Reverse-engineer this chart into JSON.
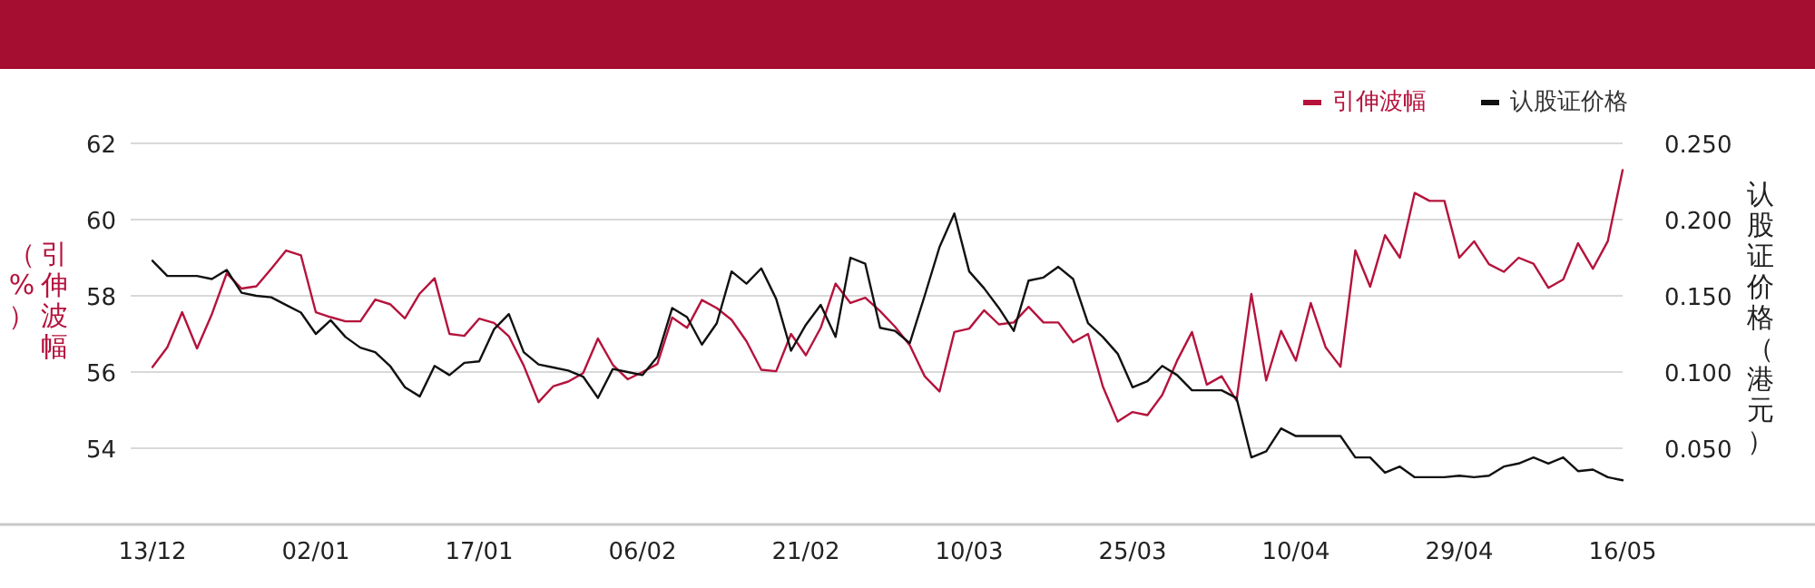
{
  "chart_data": {
    "type": "line",
    "categories": [
      "13/12",
      null,
      null,
      null,
      null,
      null,
      null,
      null,
      null,
      null,
      null,
      "02/01",
      null,
      null,
      null,
      null,
      null,
      null,
      null,
      null,
      null,
      null,
      "17/01",
      null,
      null,
      null,
      null,
      null,
      null,
      null,
      null,
      null,
      null,
      "06/02",
      null,
      null,
      null,
      null,
      null,
      null,
      null,
      null,
      null,
      null,
      "21/02",
      null,
      null,
      null,
      null,
      null,
      null,
      null,
      null,
      null,
      null,
      "10/03",
      null,
      null,
      null,
      null,
      null,
      null,
      null,
      null,
      null,
      null,
      "25/03",
      null,
      null,
      null,
      null,
      null,
      null,
      null,
      null,
      null,
      null,
      "10/04",
      null,
      null,
      null,
      null,
      null,
      null,
      null,
      null,
      null,
      null,
      "29/04",
      null,
      null,
      null,
      null,
      null,
      null,
      null,
      null,
      null,
      null,
      "16/05"
    ],
    "series": [
      {
        "name": "引伸波幅",
        "color": "#b5133c",
        "values": [
          56.13,
          56.65,
          57.57,
          56.62,
          57.52,
          58.59,
          58.19,
          58.25,
          58.71,
          59.19,
          59.06,
          57.57,
          57.44,
          57.33,
          57.33,
          57.9,
          57.78,
          57.41,
          58.06,
          58.46,
          57.0,
          56.95,
          57.4,
          57.29,
          56.94,
          56.17,
          55.21,
          55.63,
          55.75,
          55.97,
          56.88,
          56.19,
          55.81,
          56.0,
          56.21,
          57.43,
          57.16,
          57.89,
          57.68,
          57.37,
          56.81,
          56.06,
          56.02,
          57.0,
          56.44,
          57.16,
          58.32,
          57.81,
          57.95,
          57.6,
          57.19,
          56.7,
          55.89,
          55.49,
          57.05,
          57.14,
          57.62,
          57.25,
          57.3,
          57.71,
          57.3,
          57.3,
          56.78,
          57.0,
          55.62,
          54.7,
          54.95,
          54.87,
          55.4,
          56.3,
          57.05,
          55.67,
          55.89,
          55.25,
          58.05,
          55.78,
          57.08,
          56.3,
          57.81,
          56.65,
          56.14,
          59.19,
          58.24,
          59.59,
          59.0,
          60.7,
          60.49,
          60.49,
          59.0,
          59.43,
          58.83,
          58.63,
          59.0,
          58.84,
          58.21,
          58.43,
          59.38,
          58.71,
          59.43,
          61.3
        ]
      },
      {
        "name": "认股证价格",
        "color": "#111111",
        "axis": "y2",
        "values": [
          0.173,
          0.163,
          0.163,
          0.163,
          0.161,
          0.167,
          0.152,
          0.15,
          0.149,
          0.144,
          0.139,
          0.125,
          0.134,
          0.123,
          0.116,
          0.113,
          0.104,
          0.09,
          0.084,
          0.104,
          0.098,
          0.106,
          0.107,
          0.128,
          0.138,
          0.113,
          0.105,
          0.103,
          0.101,
          0.097,
          0.083,
          0.102,
          0.1,
          0.098,
          0.11,
          0.142,
          0.136,
          0.118,
          0.132,
          0.166,
          0.158,
          0.168,
          0.148,
          0.114,
          0.131,
          0.144,
          0.123,
          0.175,
          0.171,
          0.129,
          0.127,
          0.119,
          0.15,
          0.182,
          0.204,
          0.166,
          0.155,
          0.142,
          0.127,
          0.16,
          0.162,
          0.169,
          0.161,
          0.132,
          0.123,
          0.112,
          0.09,
          0.094,
          0.104,
          0.098,
          0.088,
          0.088,
          0.088,
          0.083,
          0.044,
          0.048,
          0.063,
          0.058,
          0.058,
          0.058,
          0.058,
          0.044,
          0.044,
          0.034,
          0.038,
          0.031,
          0.031,
          0.031,
          0.032,
          0.031,
          0.032,
          0.038,
          0.04,
          0.044,
          0.04,
          0.044,
          0.035,
          0.036,
          0.031,
          0.029
        ]
      }
    ],
    "ylabel": "引伸波幅（%）",
    "y2label": "认股证价格（港元）",
    "ylim": [
      52,
      62
    ],
    "yticks": [
      54,
      56,
      58,
      60,
      62
    ],
    "y2lim": [
      0,
      0.25
    ],
    "y2ticks": [
      {
        "value": 0.05,
        "label": "0.050"
      },
      {
        "value": 0.1,
        "label": "0.100"
      },
      {
        "value": 0.15,
        "label": "0.150"
      },
      {
        "value": 0.2,
        "label": "0.200"
      },
      {
        "value": 0.25,
        "label": "0.250"
      }
    ],
    "grid": "y",
    "legend": "top right"
  }
}
